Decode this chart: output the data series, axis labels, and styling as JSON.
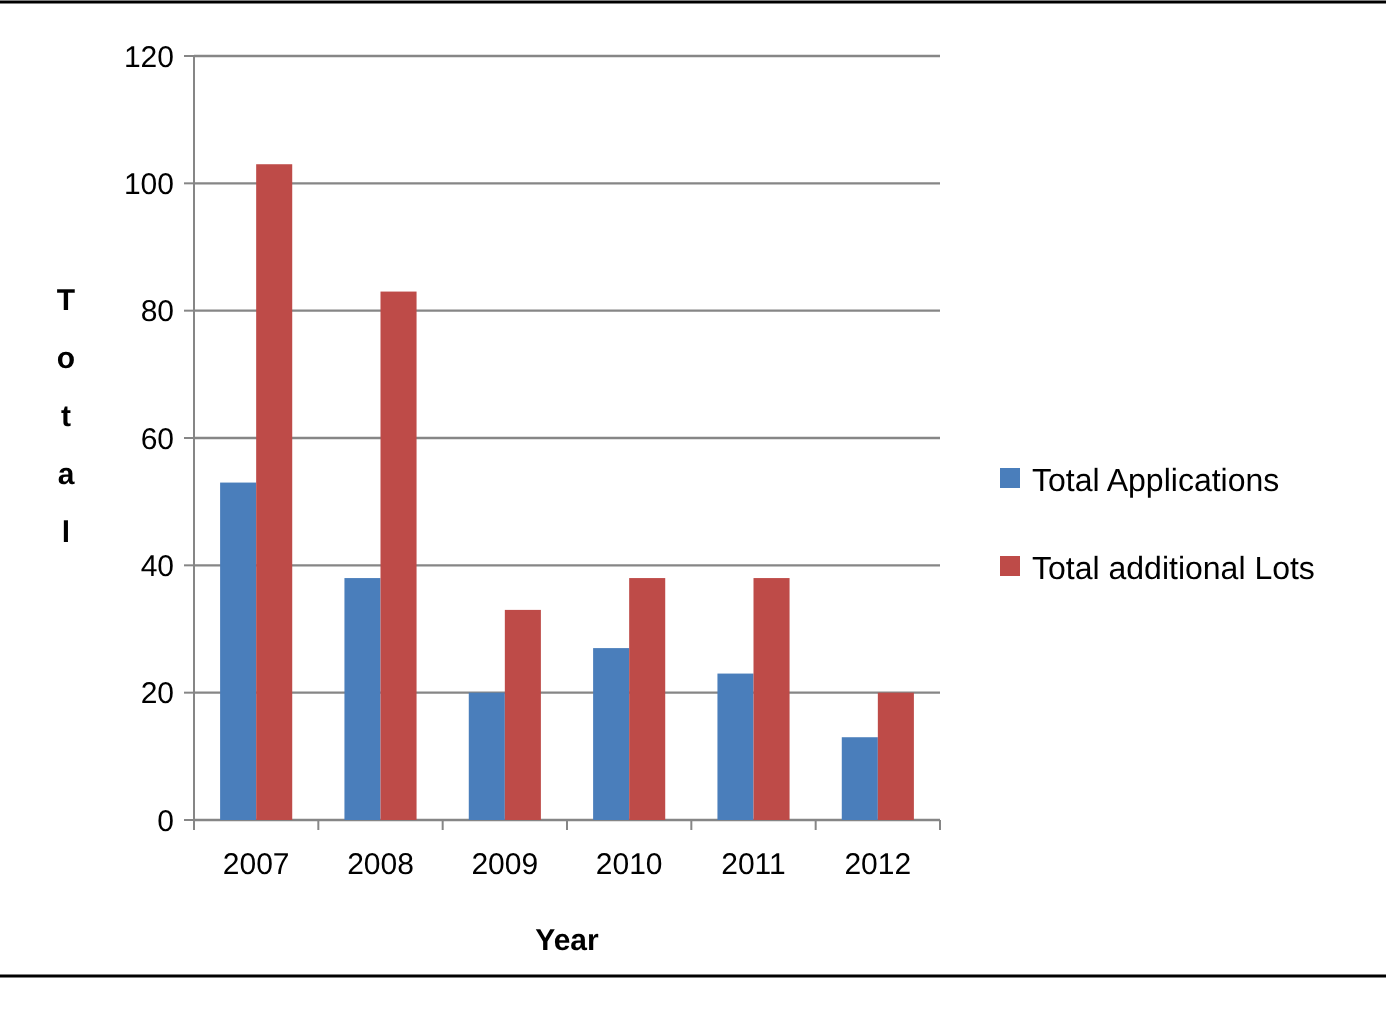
{
  "chart_data": {
    "type": "bar",
    "xlabel": "Year",
    "ylabel": "Total",
    "categories": [
      "2007",
      "2008",
      "2009",
      "2010",
      "2011",
      "2012"
    ],
    "series": [
      {
        "name": "Total Applications",
        "color": "#4a7ebb",
        "values": [
          53,
          38,
          20,
          27,
          23,
          13
        ]
      },
      {
        "name": "Total additional Lots",
        "color": "#be4b48",
        "values": [
          103,
          83,
          33,
          38,
          38,
          20
        ]
      }
    ],
    "ylim": [
      0,
      120
    ],
    "yticks": [
      0,
      20,
      40,
      60,
      80,
      100,
      120
    ],
    "grid": "y",
    "legend": "right"
  }
}
